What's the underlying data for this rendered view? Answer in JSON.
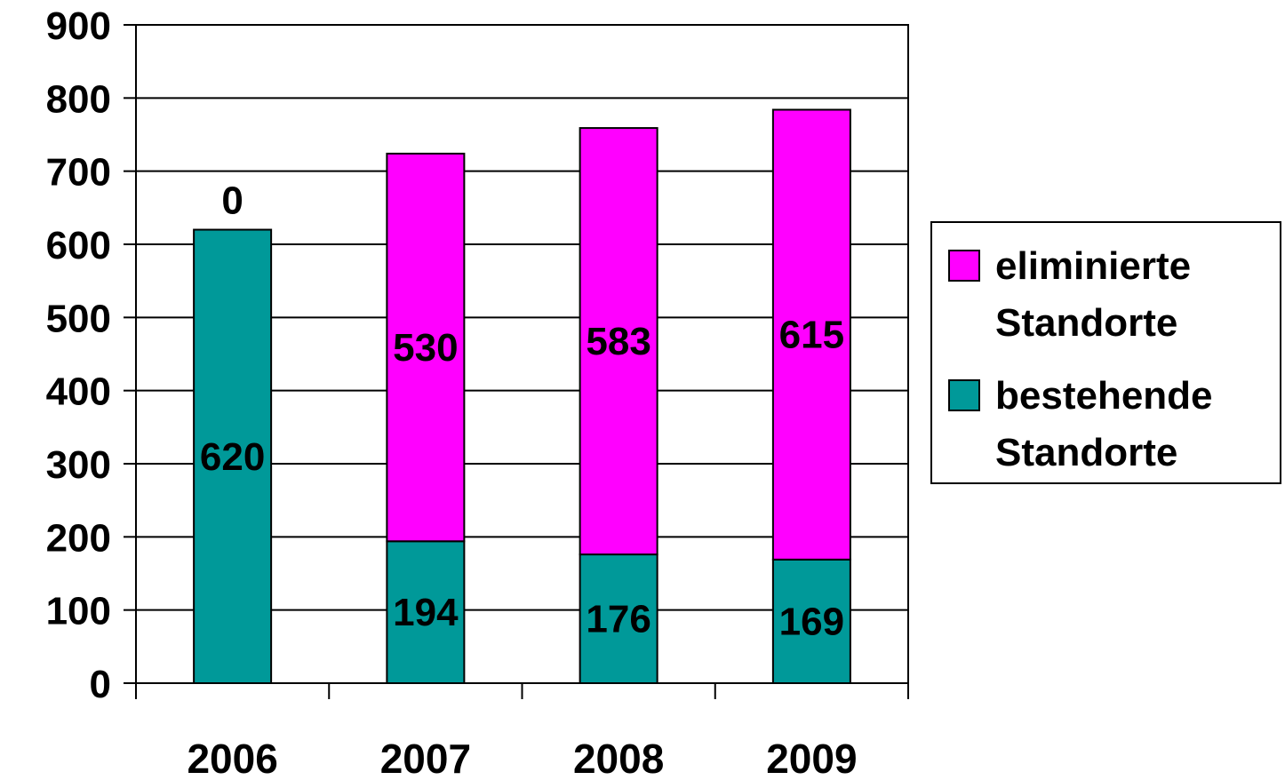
{
  "chart_data": {
    "type": "bar",
    "stacked": true,
    "title": "",
    "xlabel": "",
    "ylabel": "",
    "categories": [
      "2006",
      "2007",
      "2008",
      "2009"
    ],
    "ylim": [
      0,
      900
    ],
    "yticks": [
      "0",
      "100",
      "200",
      "300",
      "400",
      "500",
      "600",
      "700",
      "800",
      "900"
    ],
    "grid": true,
    "legend_position": "right",
    "series": [
      {
        "name_lines": [
          "bestehende",
          "Standorte"
        ],
        "color": "#009999",
        "values": [
          620,
          194,
          176,
          169
        ],
        "labels": [
          "620",
          "194",
          "176",
          "169"
        ]
      },
      {
        "name_lines": [
          "eliminierte",
          "Standorte"
        ],
        "color": "#ff00ff",
        "values": [
          0,
          530,
          583,
          615
        ],
        "labels": [
          "0",
          "530",
          "583",
          "615"
        ]
      }
    ]
  }
}
